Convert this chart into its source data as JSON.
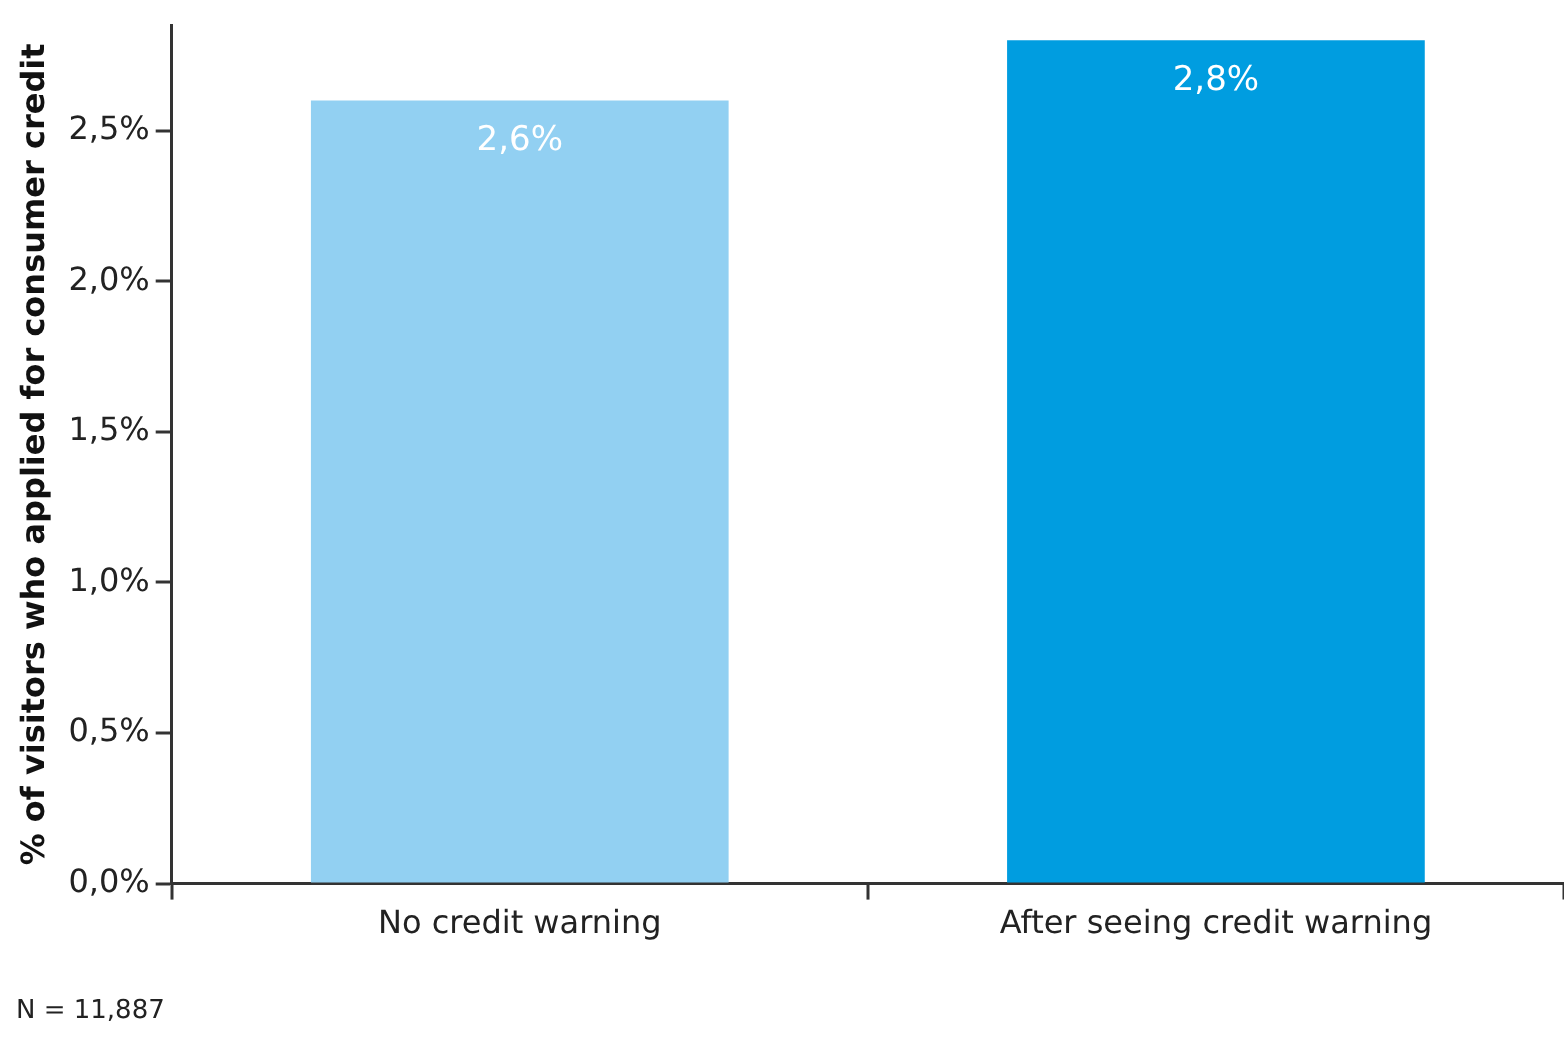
{
  "chart_data": {
    "type": "bar",
    "ylabel": "% of visitors who applied for consumer credit",
    "categories": [
      "No credit warning",
      "After seeing credit warning"
    ],
    "values": [
      2.6,
      2.8
    ],
    "colors": [
      "#92d0f2",
      "#009de0"
    ],
    "value_labels": [
      "2,6%",
      "2,8%"
    ],
    "ylim": [
      0,
      2.85
    ],
    "yticks": [
      {
        "value": 0,
        "label": "0,0%"
      },
      {
        "value": 0.5,
        "label": "0,5%"
      },
      {
        "value": 1,
        "label": "1,0%"
      },
      {
        "value": 1.5,
        "label": "1,5%"
      },
      {
        "value": 2,
        "label": "2,0%"
      },
      {
        "value": 2.5,
        "label": "2,5%"
      }
    ],
    "grid": false,
    "legend": false,
    "annotations": [
      "N = 11,887"
    ]
  }
}
